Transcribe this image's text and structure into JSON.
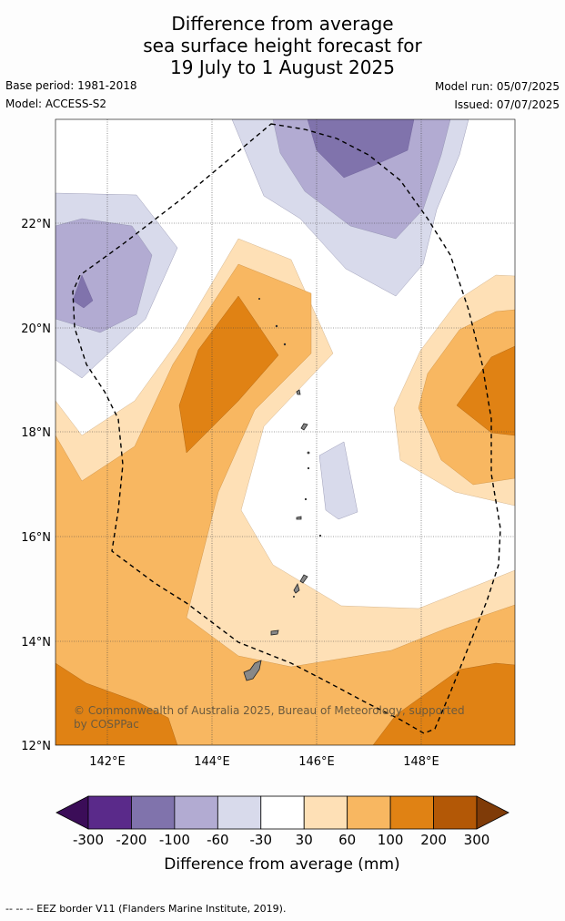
{
  "title": {
    "line1": "Difference from average",
    "line2": "sea surface height forecast for",
    "line3": "19 July to 1 August 2025"
  },
  "meta": {
    "base_period": "Base period: 1981-2018",
    "model": "Model: ACCESS-S2",
    "model_run": "Model run: 05/07/2025",
    "issued": "Issued: 07/07/2025"
  },
  "map": {
    "lat_ticks": [
      "22°N",
      "20°N",
      "18°N",
      "16°N",
      "14°N",
      "12°N"
    ],
    "lon_ticks": [
      "142°E",
      "144°E",
      "146°E",
      "148°E"
    ],
    "copyright_line1": "© Commonwealth of Australia 2025, Bureau of Meteorology, supported",
    "copyright_line2": "by COSPPac"
  },
  "colorbar": {
    "labels": [
      "-300",
      "-200",
      "-100",
      "-60",
      "-30",
      "30",
      "60",
      "100",
      "200",
      "300"
    ],
    "colors": [
      "#3b0d58",
      "#5a2a8a",
      "#8073ac",
      "#b2abd2",
      "#d8daeb",
      "#ffffff",
      "#fee0b6",
      "#f8b761",
      "#e08214",
      "#b35806",
      "#7f3b08"
    ],
    "title": "Difference from average (mm)"
  },
  "footnote": "-- -- -- EEZ border V11 (Flanders Marine Institute, 2019)."
}
